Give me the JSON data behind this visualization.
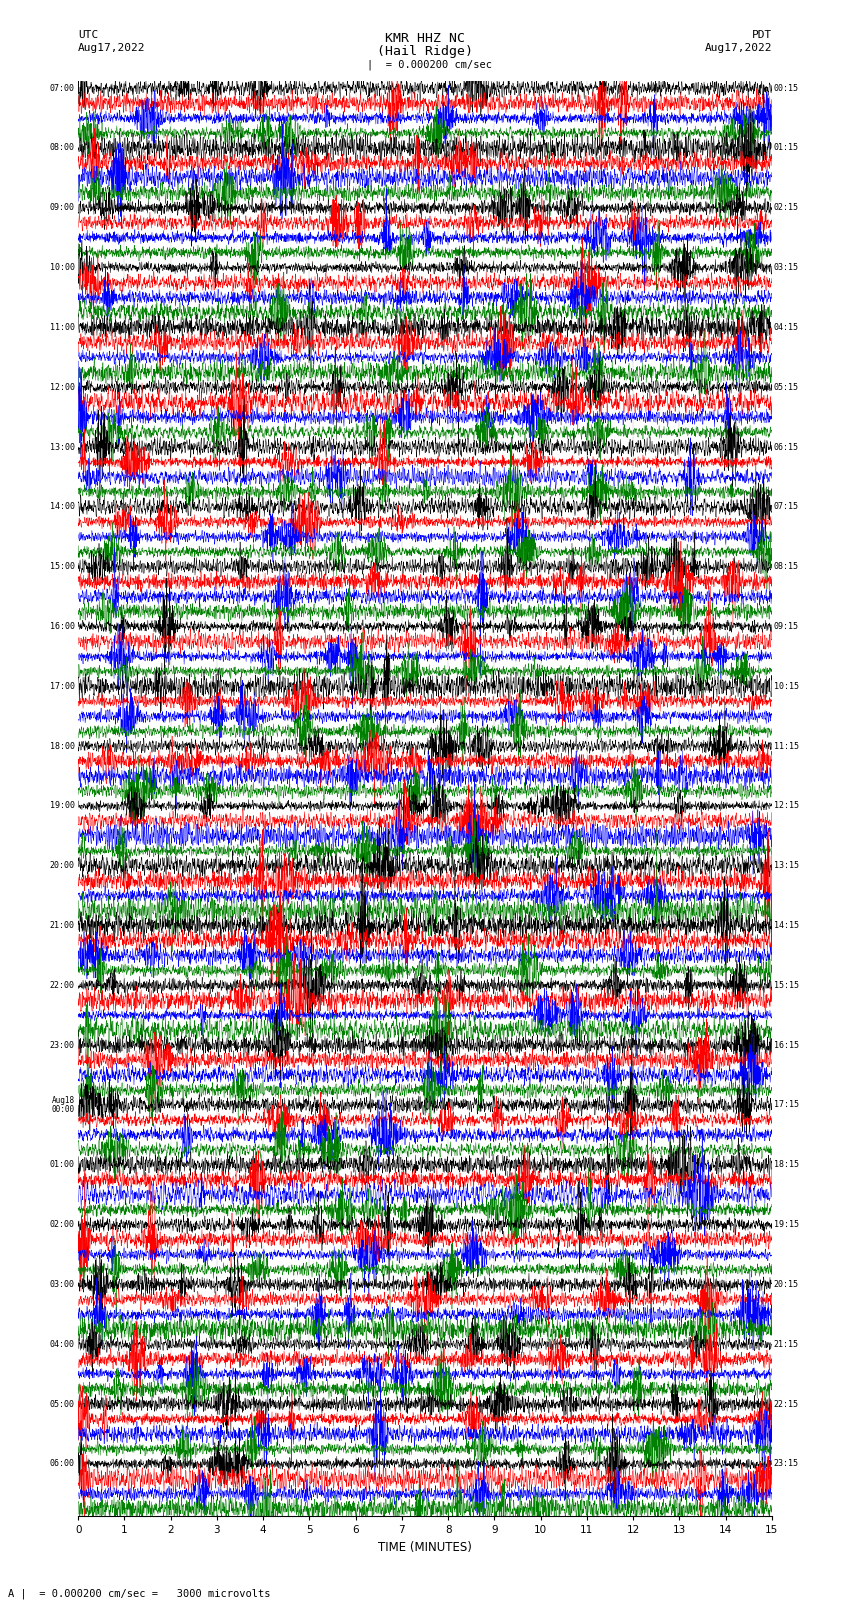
{
  "title_line1": "KMR HHZ NC",
  "title_line2": "(Hail Ridge)",
  "left_header_line1": "UTC",
  "left_header_line2": "Aug17,2022",
  "right_header_line1": "PDT",
  "right_header_line2": "Aug17,2022",
  "scale_label": "  = 0.000200 cm/sec",
  "bottom_label": "A |  = 0.000200 cm/sec =   3000 microvolts",
  "xlabel": "TIME (MINUTES)",
  "xticks": [
    0,
    1,
    2,
    3,
    4,
    5,
    6,
    7,
    8,
    9,
    10,
    11,
    12,
    13,
    14,
    15
  ],
  "trace_colors": [
    "black",
    "red",
    "blue",
    "green"
  ],
  "fig_width": 8.5,
  "fig_height": 16.13,
  "bg_color": "white",
  "utc_times": [
    "07:00",
    "08:00",
    "09:00",
    "10:00",
    "11:00",
    "12:00",
    "13:00",
    "14:00",
    "15:00",
    "16:00",
    "17:00",
    "18:00",
    "19:00",
    "20:00",
    "21:00",
    "22:00",
    "23:00",
    "Aug18\n00:00",
    "01:00",
    "02:00",
    "03:00",
    "04:00",
    "05:00",
    "06:00"
  ],
  "pdt_times": [
    "00:15",
    "01:15",
    "02:15",
    "03:15",
    "04:15",
    "05:15",
    "06:15",
    "07:15",
    "08:15",
    "09:15",
    "10:15",
    "11:15",
    "12:15",
    "13:15",
    "14:15",
    "15:15",
    "16:15",
    "17:15",
    "18:15",
    "19:15",
    "20:15",
    "21:15",
    "22:15",
    "23:15"
  ],
  "n_groups": 24,
  "n_traces_per_group": 4,
  "n_samples": 3000,
  "amplitude": 0.42,
  "noise_scale": 0.55,
  "seed": 42
}
